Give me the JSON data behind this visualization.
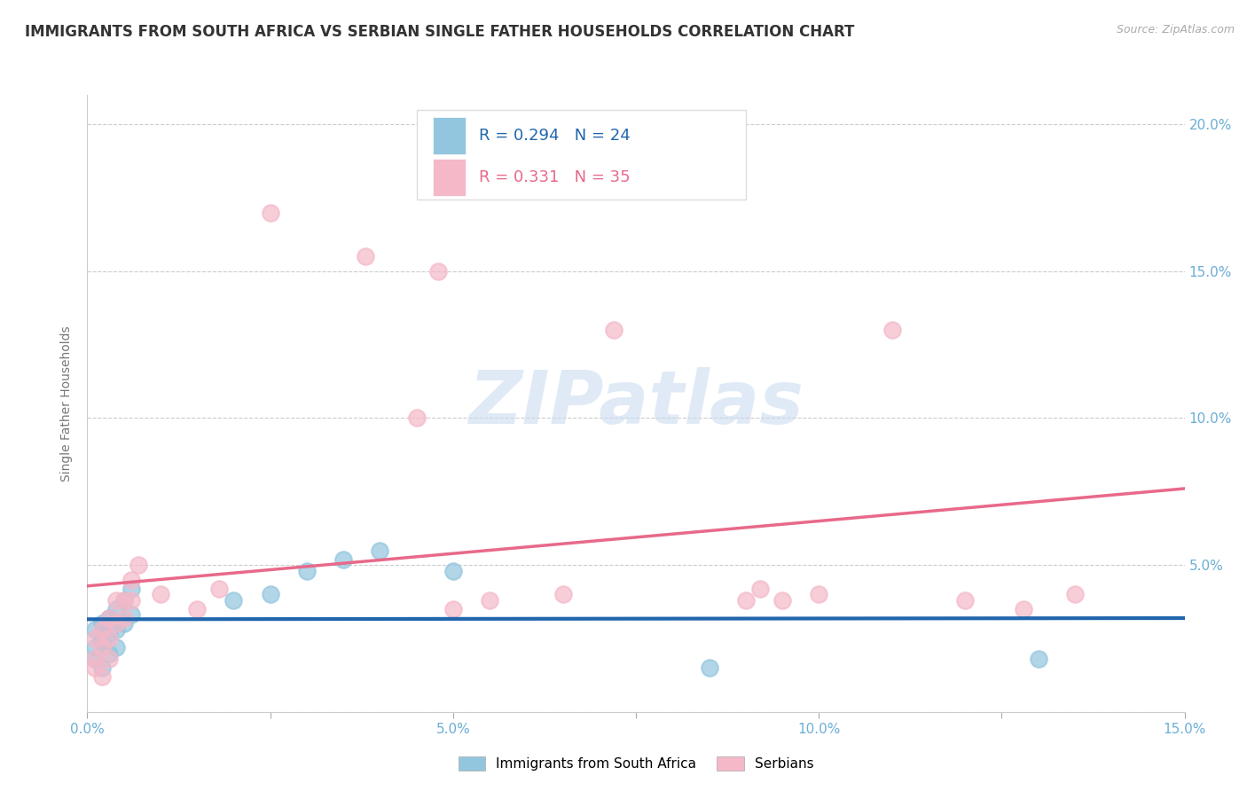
{
  "title": "IMMIGRANTS FROM SOUTH AFRICA VS SERBIAN SINGLE FATHER HOUSEHOLDS CORRELATION CHART",
  "source": "Source: ZipAtlas.com",
  "ylabel": "Single Father Households",
  "xlim": [
    0.0,
    0.15
  ],
  "ylim": [
    0.0,
    0.21
  ],
  "xticks": [
    0.0,
    0.025,
    0.05,
    0.075,
    0.1,
    0.125,
    0.15
  ],
  "xticklabels": [
    "0.0%",
    "",
    "5.0%",
    "",
    "10.0%",
    "",
    "15.0%"
  ],
  "yticks": [
    0.0,
    0.05,
    0.1,
    0.15,
    0.2
  ],
  "yticklabels": [
    "",
    "5.0%",
    "10.0%",
    "15.0%",
    "20.0%"
  ],
  "watermark": "ZIPatlas",
  "blue_color": "#92c5de",
  "pink_color": "#f4b8c8",
  "blue_line_color": "#2166ac",
  "pink_line_color": "#e8698a",
  "blue_scatter": [
    [
      0.001,
      0.022
    ],
    [
      0.001,
      0.028
    ],
    [
      0.001,
      0.018
    ],
    [
      0.002,
      0.03
    ],
    [
      0.002,
      0.024
    ],
    [
      0.002,
      0.015
    ],
    [
      0.003,
      0.032
    ],
    [
      0.003,
      0.027
    ],
    [
      0.003,
      0.02
    ],
    [
      0.004,
      0.035
    ],
    [
      0.004,
      0.028
    ],
    [
      0.004,
      0.022
    ],
    [
      0.005,
      0.038
    ],
    [
      0.005,
      0.03
    ],
    [
      0.006,
      0.042
    ],
    [
      0.006,
      0.033
    ],
    [
      0.02,
      0.038
    ],
    [
      0.025,
      0.04
    ],
    [
      0.03,
      0.048
    ],
    [
      0.035,
      0.052
    ],
    [
      0.04,
      0.055
    ],
    [
      0.05,
      0.048
    ],
    [
      0.085,
      0.015
    ],
    [
      0.13,
      0.018
    ]
  ],
  "pink_scatter": [
    [
      0.001,
      0.018
    ],
    [
      0.001,
      0.025
    ],
    [
      0.001,
      0.015
    ],
    [
      0.002,
      0.028
    ],
    [
      0.002,
      0.022
    ],
    [
      0.002,
      0.012
    ],
    [
      0.003,
      0.032
    ],
    [
      0.003,
      0.025
    ],
    [
      0.003,
      0.018
    ],
    [
      0.004,
      0.038
    ],
    [
      0.004,
      0.03
    ],
    [
      0.005,
      0.038
    ],
    [
      0.005,
      0.032
    ],
    [
      0.006,
      0.045
    ],
    [
      0.006,
      0.038
    ],
    [
      0.007,
      0.05
    ],
    [
      0.01,
      0.04
    ],
    [
      0.015,
      0.035
    ],
    [
      0.018,
      0.042
    ],
    [
      0.025,
      0.17
    ],
    [
      0.038,
      0.155
    ],
    [
      0.045,
      0.1
    ],
    [
      0.048,
      0.15
    ],
    [
      0.05,
      0.035
    ],
    [
      0.055,
      0.038
    ],
    [
      0.065,
      0.04
    ],
    [
      0.072,
      0.13
    ],
    [
      0.09,
      0.038
    ],
    [
      0.092,
      0.042
    ],
    [
      0.095,
      0.038
    ],
    [
      0.1,
      0.04
    ],
    [
      0.11,
      0.13
    ],
    [
      0.12,
      0.038
    ],
    [
      0.128,
      0.035
    ],
    [
      0.135,
      0.04
    ]
  ],
  "title_fontsize": 12,
  "axis_label_fontsize": 10,
  "tick_fontsize": 11,
  "legend_fontsize": 13,
  "watermark_fontsize": 60,
  "background_color": "#ffffff",
  "grid_color": "#cccccc"
}
